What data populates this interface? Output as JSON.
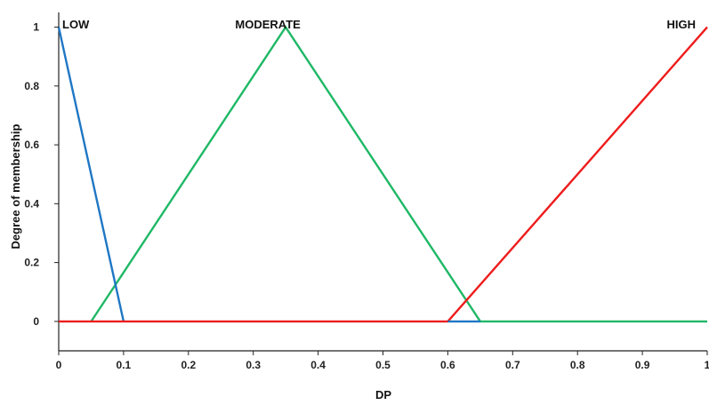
{
  "chart_data": {
    "type": "line",
    "xlabel": "DP",
    "ylabel": "Degree of membership",
    "xlim": [
      0,
      1
    ],
    "ylim": [
      -0.1,
      1.05
    ],
    "x_ticks": [
      "0",
      "0.1",
      "0.2",
      "0.3",
      "0.4",
      "0.5",
      "0.6",
      "0.7",
      "0.8",
      "0.9",
      "1"
    ],
    "y_ticks": [
      "0",
      "0.2",
      "0.4",
      "0.6",
      "0.8",
      "1"
    ],
    "grid": false,
    "series": [
      {
        "name": "LOW",
        "color": "#1f77c4",
        "points": [
          [
            0,
            1
          ],
          [
            0.1,
            0
          ]
        ]
      },
      {
        "name": "MODERATE",
        "color": "#1fb866",
        "points": [
          [
            0.05,
            0
          ],
          [
            0.35,
            1
          ],
          [
            0.65,
            0
          ],
          [
            1,
            0
          ]
        ]
      },
      {
        "name": "HIGH",
        "color": "#ee1c1c",
        "points": [
          [
            0,
            0
          ],
          [
            0.6,
            0
          ],
          [
            1,
            1
          ]
        ]
      }
    ],
    "segments": [
      {
        "color": "#1f77c4",
        "points": [
          [
            0.6,
            0
          ],
          [
            0.65,
            0
          ]
        ]
      }
    ]
  }
}
